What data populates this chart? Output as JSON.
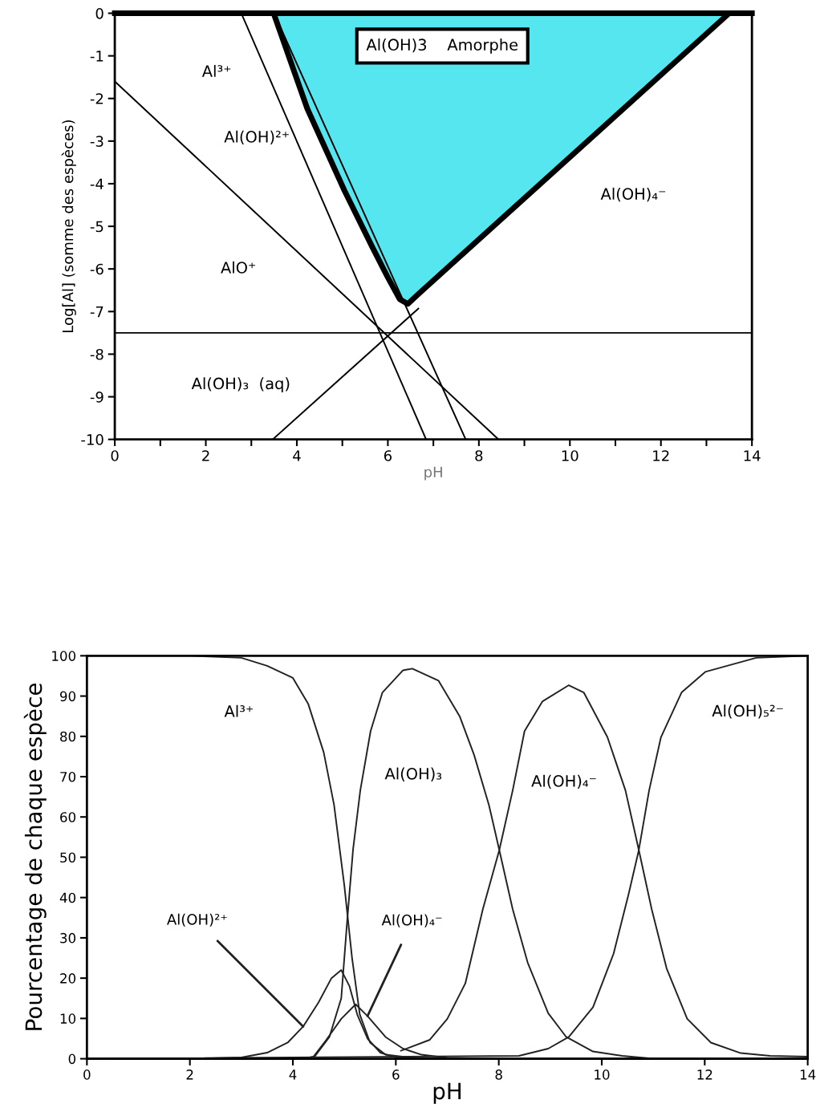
{
  "chart_data": [
    {
      "type": "line",
      "xlabel": "pH",
      "ylabel": "Log[Al] (somme des espèces)",
      "xlim": [
        0,
        14
      ],
      "ylim": [
        -10,
        0
      ],
      "xticks": [
        0,
        {
          "value": 1,
          "label": null
        },
        2,
        {
          "value": 3,
          "label": null
        },
        4,
        {
          "value": 5,
          "label": null
        },
        6,
        {
          "value": 7,
          "label": null
        },
        8,
        {
          "value": 9,
          "label": null
        },
        10,
        {
          "value": 11,
          "label": null
        },
        12,
        {
          "value": 13,
          "label": null
        },
        14
      ],
      "yticks": [
        0,
        -1,
        -2,
        -3,
        -4,
        -5,
        -6,
        -7,
        -8,
        -9,
        -10
      ],
      "grid": false,
      "legend": false,
      "series": [
        {
          "type": "area",
          "color": "#55e6f0",
          "x": [
            3.49,
            4.23,
            5.05,
            5.66,
            6.0,
            6.26,
            6.44,
            6.7,
            13.5
          ],
          "values": [
            0,
            -2.24,
            -4.17,
            -5.49,
            -6.2,
            -6.71,
            -6.82,
            -6.56,
            0
          ]
        },
        {
          "color": "#000000",
          "x": [
            0,
            8.43
          ],
          "values": [
            -1.6,
            -10
          ]
        },
        {
          "color": "#000000",
          "x": [
            2.78,
            6.84
          ],
          "values": [
            0,
            -10
          ]
        },
        {
          "color": "#000000",
          "x": [
            3.5,
            7.71
          ],
          "values": [
            0,
            -10
          ]
        },
        {
          "color": "#000000",
          "x": [
            3.47,
            6.67
          ],
          "values": [
            -10,
            -6.93
          ]
        }
      ],
      "ref_lines": [
        {
          "axis": "y",
          "value": -7.5,
          "color": "#000000"
        }
      ],
      "annotations": [
        "Al(OH)3    Amorphe",
        "Al³⁺",
        "Al(OH)²⁺",
        "AlO⁺",
        "Al(OH)₃  (aq)",
        "Al(OH)₄⁻"
      ]
    },
    {
      "type": "line",
      "xlabel": "pH",
      "ylabel": "Pourcentage de chaque espèce",
      "xlim": [
        0,
        14
      ],
      "ylim": [
        0,
        100
      ],
      "xticks": [
        0,
        2,
        4,
        6,
        8,
        10,
        12,
        14
      ],
      "yticks": [
        0,
        10,
        20,
        30,
        40,
        50,
        60,
        70,
        80,
        90,
        100
      ],
      "grid": false,
      "legend": false,
      "series": [
        {
          "color": "#222222",
          "x": [
            0,
            2,
            3,
            3.5,
            4,
            4.3,
            4.6,
            4.8,
            5.0,
            5.15,
            5.3,
            5.5,
            5.8,
            6.5,
            14
          ],
          "values": [
            100,
            100,
            99.5,
            97.5,
            94.5,
            88,
            76,
            63,
            43,
            25,
            11,
            4,
            1,
            0,
            0
          ]
        },
        {
          "color": "#222222",
          "x": [
            2,
            3,
            3.5,
            3.9,
            4.2,
            4.5,
            4.75,
            4.94,
            5.1,
            5.25,
            5.45,
            5.7,
            6,
            7,
            14
          ],
          "values": [
            0,
            0.3,
            1.5,
            4,
            8,
            14,
            20,
            22,
            18,
            11,
            5,
            1.5,
            0.3,
            0,
            0
          ]
        },
        {
          "color": "#222222",
          "x": [
            0,
            4.2,
            4.42,
            4.71,
            4.94,
            5.05,
            5.17,
            5.31,
            5.51,
            5.74,
            6.14,
            6.32,
            6.83,
            7.24,
            7.52,
            7.81,
            8.01,
            8.27,
            8.56,
            8.96,
            9.31,
            9.83,
            10.4,
            11,
            14
          ],
          "values": [
            0,
            0,
            0.5,
            5.4,
            15,
            33.4,
            52,
            66.6,
            81.3,
            90.9,
            96.4,
            96.8,
            93.8,
            85,
            75.4,
            62.9,
            51.8,
            37.1,
            23.9,
            11.3,
            5.4,
            1.8,
            0.7,
            0,
            0
          ]
        },
        {
          "color": "#222222",
          "x": [
            0,
            4.2,
            4.4,
            4.65,
            4.94,
            5.22,
            5.45,
            5.8,
            6.14,
            6.5,
            7,
            8
          ],
          "values": [
            0,
            0,
            0.5,
            4.7,
            9.9,
            13.5,
            10.6,
            5.4,
            2.5,
            1,
            0.2,
            0
          ]
        },
        {
          "color": "#222222",
          "x": [
            6.1,
            6.66,
            7.0,
            7.35,
            7.69,
            8.01,
            8.27,
            8.5,
            8.85,
            9.36,
            9.65,
            10.11,
            10.46,
            10.72,
            10.97,
            11.26,
            11.66,
            12.12,
            12.7,
            13.27,
            14
          ],
          "values": [
            2,
            4.7,
            9.9,
            18.7,
            37.1,
            51.8,
            66.6,
            81.3,
            88.7,
            92.7,
            90.9,
            79.8,
            66.6,
            51.8,
            37.1,
            22.4,
            9.9,
            4,
            1.4,
            0.7,
            0.5
          ]
        },
        {
          "color": "#222222",
          "x": [
            0,
            8.39,
            8.96,
            9.36,
            9.83,
            10.23,
            10.52,
            10.72,
            10.92,
            11.15,
            11.55,
            12.01,
            13,
            14
          ],
          "values": [
            0,
            0.7,
            2.5,
            5.4,
            12.8,
            26.1,
            40.8,
            51.8,
            66.6,
            79.8,
            90.9,
            96,
            99.5,
            100
          ]
        }
      ],
      "annotations": [
        "Al³⁺",
        "Al(OH)₃",
        "Al(OH)₄⁻",
        "Al(OH)₅²⁻",
        {
          "text": "Al(OH)²⁺",
          "x": 4.2,
          "y": 8
        },
        {
          "text": "Al(OH)₄⁻",
          "x": 5.45,
          "y": 10.6
        }
      ]
    }
  ]
}
